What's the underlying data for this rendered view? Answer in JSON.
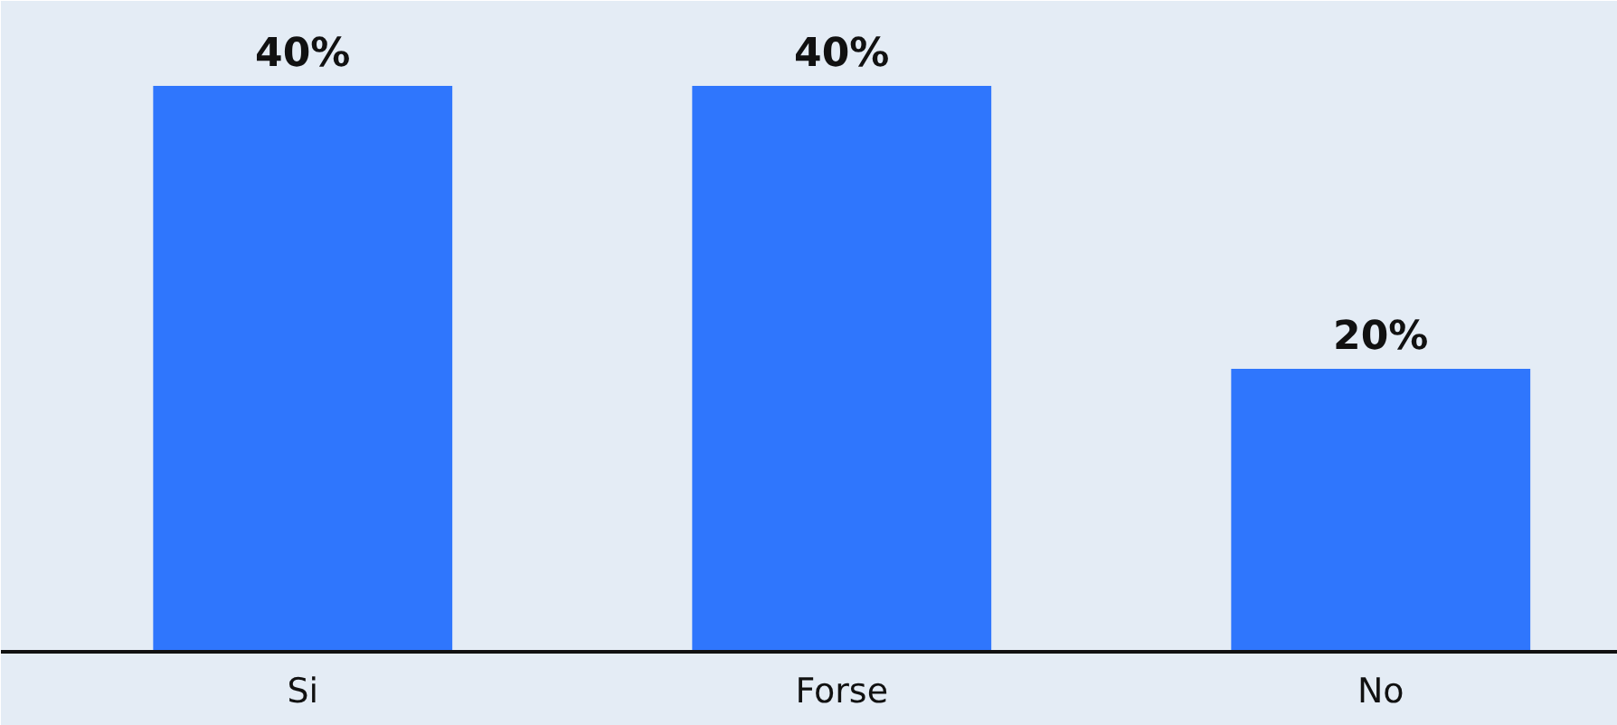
{
  "chart_data": {
    "type": "bar",
    "categories": [
      "Si",
      "Forse",
      "No"
    ],
    "values": [
      40,
      40,
      20
    ],
    "value_labels": [
      "40%",
      "40%",
      "20%"
    ],
    "color": "#2f76fd",
    "grid": false
  }
}
